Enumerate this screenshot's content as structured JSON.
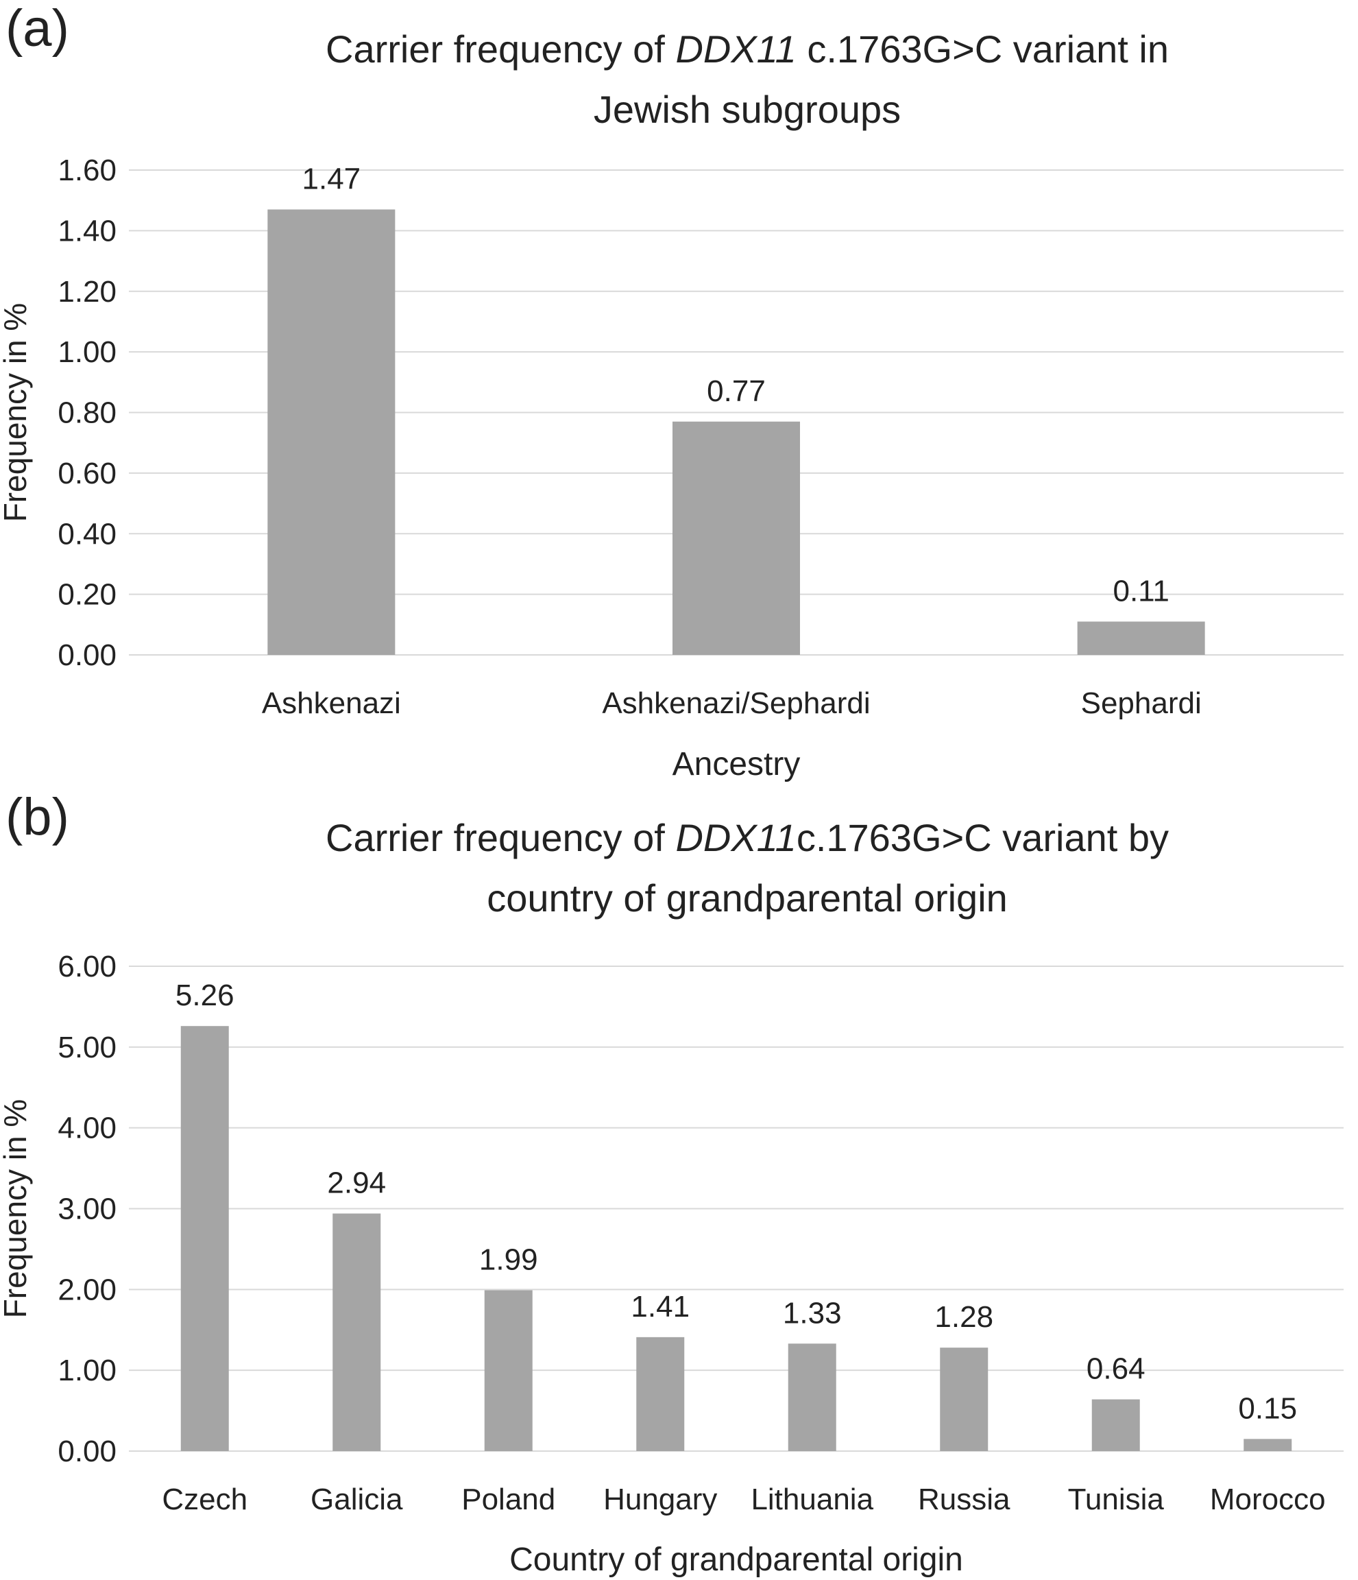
{
  "chart_data": [
    {
      "panel_label": "(a)",
      "type": "bar",
      "title": {
        "pre": "Carrier frequency of ",
        "italic": "DDX11",
        "post": " c.1763G>C variant in",
        "line2": "Jewish subgroups"
      },
      "xlabel": "Ancestry",
      "ylabel": "Frequency in %",
      "categories": [
        "Ashkenazi",
        "Ashkenazi/Sephardi",
        "Sephardi"
      ],
      "values": [
        1.47,
        0.77,
        0.11
      ],
      "data_labels": [
        "1.47",
        "0.77",
        "0.11"
      ],
      "ylim": [
        0,
        1.6
      ],
      "yticks": [
        "0.00",
        "0.20",
        "0.40",
        "0.60",
        "0.80",
        "1.00",
        "1.20",
        "1.40",
        "1.60"
      ],
      "grid": true,
      "bar_color": "#a5a5a5",
      "grid_color": "#d9d9d9"
    },
    {
      "panel_label": "(b)",
      "type": "bar",
      "title": {
        "pre": "Carrier frequency of ",
        "italic": "DDX11",
        "post": "c.1763G>C variant by",
        "line2": "country of grandparental origin"
      },
      "xlabel": "Country of grandparental origin",
      "ylabel": "Frequency in %",
      "categories": [
        "Czech",
        "Galicia",
        "Poland",
        "Hungary",
        "Lithuania",
        "Russia",
        "Tunisia",
        "Morocco"
      ],
      "values": [
        5.26,
        2.94,
        1.99,
        1.41,
        1.33,
        1.28,
        0.64,
        0.15
      ],
      "data_labels": [
        "5.26",
        "2.94",
        "1.99",
        "1.41",
        "1.33",
        "1.28",
        "0.64",
        "0.15"
      ],
      "ylim": [
        0,
        6
      ],
      "yticks": [
        "0.00",
        "1.00",
        "2.00",
        "3.00",
        "4.00",
        "5.00",
        "6.00"
      ],
      "grid": true,
      "bar_color": "#a5a5a5",
      "grid_color": "#d9d9d9"
    }
  ]
}
